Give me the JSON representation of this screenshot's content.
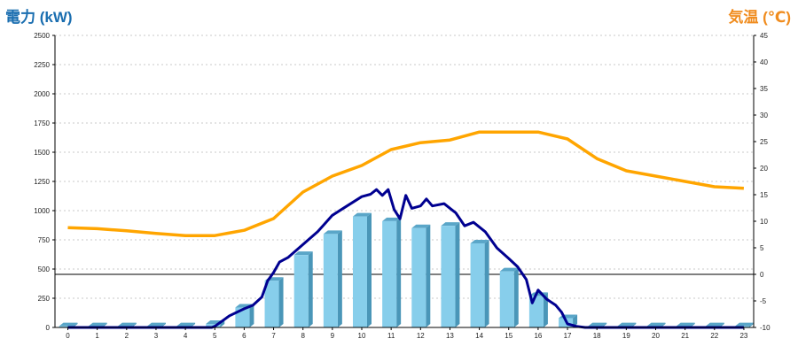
{
  "chart_data": {
    "type": "bar",
    "left_axis_title": "電力 (kW)",
    "right_axis_title": "気温 (℃)",
    "categories": [
      "0",
      "1",
      "2",
      "3",
      "4",
      "5",
      "6",
      "7",
      "8",
      "9",
      "10",
      "11",
      "12",
      "13",
      "14",
      "15",
      "16",
      "17",
      "18",
      "19",
      "20",
      "21",
      "22",
      "23"
    ],
    "y_left": {
      "min": 0,
      "max": 2500,
      "ticks": [
        "0",
        "250",
        "500",
        "750",
        "1000",
        "1250",
        "1500",
        "1750",
        "2000",
        "2250",
        "2500"
      ]
    },
    "y_right": {
      "min": -10,
      "max": 45,
      "ticks": [
        "-10",
        "-5",
        "0",
        "5",
        "10",
        "15",
        "20",
        "25",
        "30",
        "35",
        "40",
        "45"
      ]
    },
    "grid": true,
    "series": [
      {
        "kind": "bar",
        "axis": "left",
        "color": "#87ceeb",
        "values": [
          10,
          10,
          10,
          10,
          10,
          30,
          170,
          400,
          620,
          800,
          950,
          910,
          850,
          870,
          720,
          480,
          270,
          80,
          10,
          10,
          10,
          10,
          10,
          10
        ]
      },
      {
        "kind": "line",
        "axis": "left",
        "color": "#000090",
        "points": [
          [
            0,
            0
          ],
          [
            4.9,
            0
          ],
          [
            5,
            10
          ],
          [
            5.5,
            100
          ],
          [
            6,
            160
          ],
          [
            6.3,
            190
          ],
          [
            6.6,
            260
          ],
          [
            6.8,
            400
          ],
          [
            7,
            470
          ],
          [
            7.2,
            560
          ],
          [
            7.5,
            600
          ],
          [
            8,
            710
          ],
          [
            8.5,
            820
          ],
          [
            9,
            960
          ],
          [
            9.5,
            1040
          ],
          [
            10,
            1120
          ],
          [
            10.3,
            1140
          ],
          [
            10.5,
            1180
          ],
          [
            10.7,
            1130
          ],
          [
            10.9,
            1180
          ],
          [
            11.1,
            1010
          ],
          [
            11.3,
            930
          ],
          [
            11.5,
            1130
          ],
          [
            11.7,
            1020
          ],
          [
            12,
            1040
          ],
          [
            12.2,
            1100
          ],
          [
            12.4,
            1040
          ],
          [
            12.8,
            1060
          ],
          [
            13.2,
            980
          ],
          [
            13.5,
            870
          ],
          [
            13.8,
            900
          ],
          [
            14.2,
            820
          ],
          [
            14.6,
            680
          ],
          [
            15,
            590
          ],
          [
            15.3,
            520
          ],
          [
            15.6,
            410
          ],
          [
            15.8,
            210
          ],
          [
            16,
            320
          ],
          [
            16.3,
            240
          ],
          [
            16.6,
            190
          ],
          [
            16.8,
            130
          ],
          [
            17,
            30
          ],
          [
            17.3,
            10
          ],
          [
            17.6,
            0
          ],
          [
            23,
            0
          ]
        ]
      },
      {
        "kind": "line",
        "axis": "right",
        "color": "#ffa500",
        "values": [
          8.8,
          8.6,
          8.2,
          7.7,
          7.3,
          7.3,
          8.3,
          10.5,
          15.5,
          18.5,
          20.5,
          23.5,
          24.8,
          25.3,
          26.8,
          26.8,
          26.8,
          25.5,
          21.8,
          19.5,
          18.5,
          17.5,
          16.5,
          16.2
        ]
      }
    ]
  }
}
